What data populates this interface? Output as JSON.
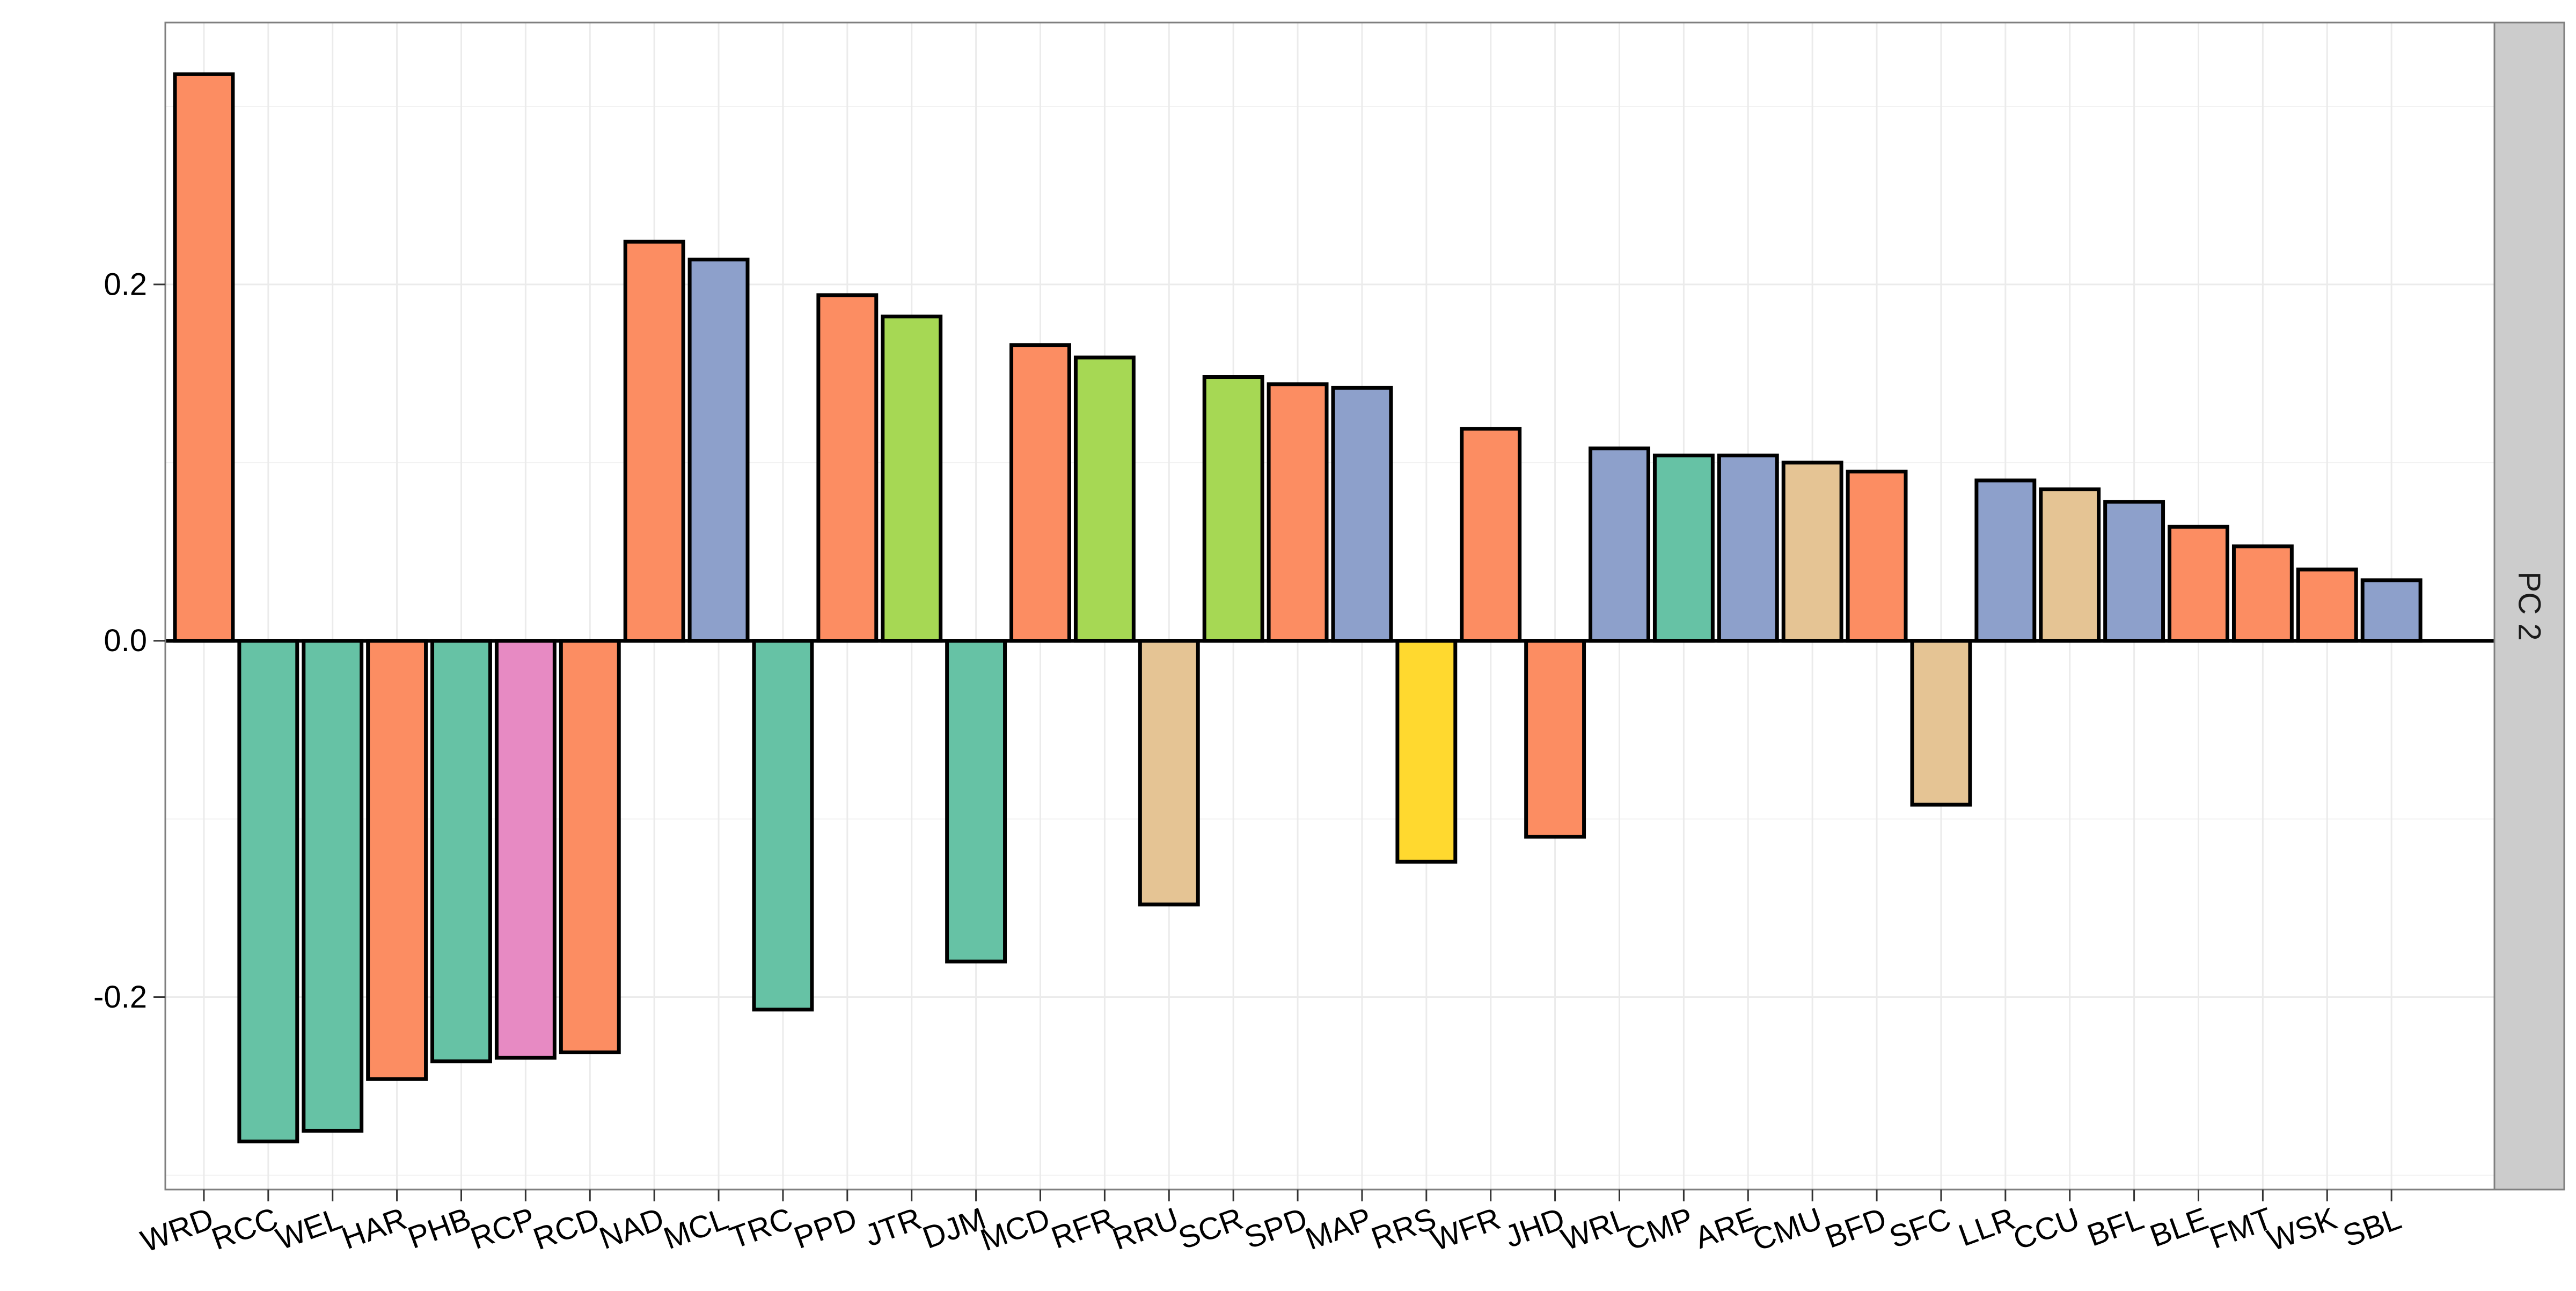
{
  "chart_data": {
    "type": "bar",
    "facet_label": "PC 2",
    "categories": [
      "WRD",
      "RCC",
      "WEL",
      "HAR",
      "PHB",
      "RCP",
      "RCD",
      "NAD",
      "MCL",
      "TRC",
      "PPD",
      "JTR",
      "DJM",
      "MCD",
      "RFR",
      "RRU",
      "SCR",
      "SPD",
      "MAP",
      "RRS",
      "WFR",
      "JHD",
      "WRL",
      "CMP",
      "ARE",
      "CMU",
      "BFD",
      "SFC",
      "LLR",
      "CCU",
      "BFL",
      "BLE",
      "FMT",
      "WSK",
      "SBL"
    ],
    "values": [
      0.318,
      -0.281,
      -0.275,
      -0.246,
      -0.236,
      -0.234,
      -0.231,
      0.224,
      0.214,
      -0.207,
      0.194,
      0.182,
      -0.18,
      0.166,
      0.159,
      -0.148,
      0.148,
      0.144,
      0.142,
      -0.124,
      0.119,
      -0.11,
      0.108,
      0.104,
      0.104,
      0.1,
      0.095,
      -0.092,
      0.09,
      0.085,
      0.078,
      0.064,
      0.053,
      0.04,
      0.034
    ],
    "colors": [
      "#fc8d62",
      "#66c2a5",
      "#66c2a5",
      "#fc8d62",
      "#66c2a5",
      "#e78ac3",
      "#fc8d62",
      "#fc8d62",
      "#8da0cb",
      "#66c2a5",
      "#fc8d62",
      "#a6d854",
      "#66c2a5",
      "#fc8d62",
      "#a6d854",
      "#e5c494",
      "#a6d854",
      "#fc8d62",
      "#8da0cb",
      "#ffd92f",
      "#fc8d62",
      "#fc8d62",
      "#8da0cb",
      "#66c2a5",
      "#8da0cb",
      "#e5c494",
      "#fc8d62",
      "#e5c494",
      "#8da0cb",
      "#e5c494",
      "#8da0cb",
      "#fc8d62",
      "#fc8d62",
      "#fc8d62",
      "#8da0cb"
    ],
    "yticks": [
      -0.2,
      0.0,
      0.2
    ],
    "ytick_labels": [
      "-0.2",
      "0.0",
      "0.2"
    ],
    "ylim": [
      -0.308,
      0.347
    ],
    "grid": true,
    "title": "",
    "xlabel": "",
    "ylabel": ""
  }
}
